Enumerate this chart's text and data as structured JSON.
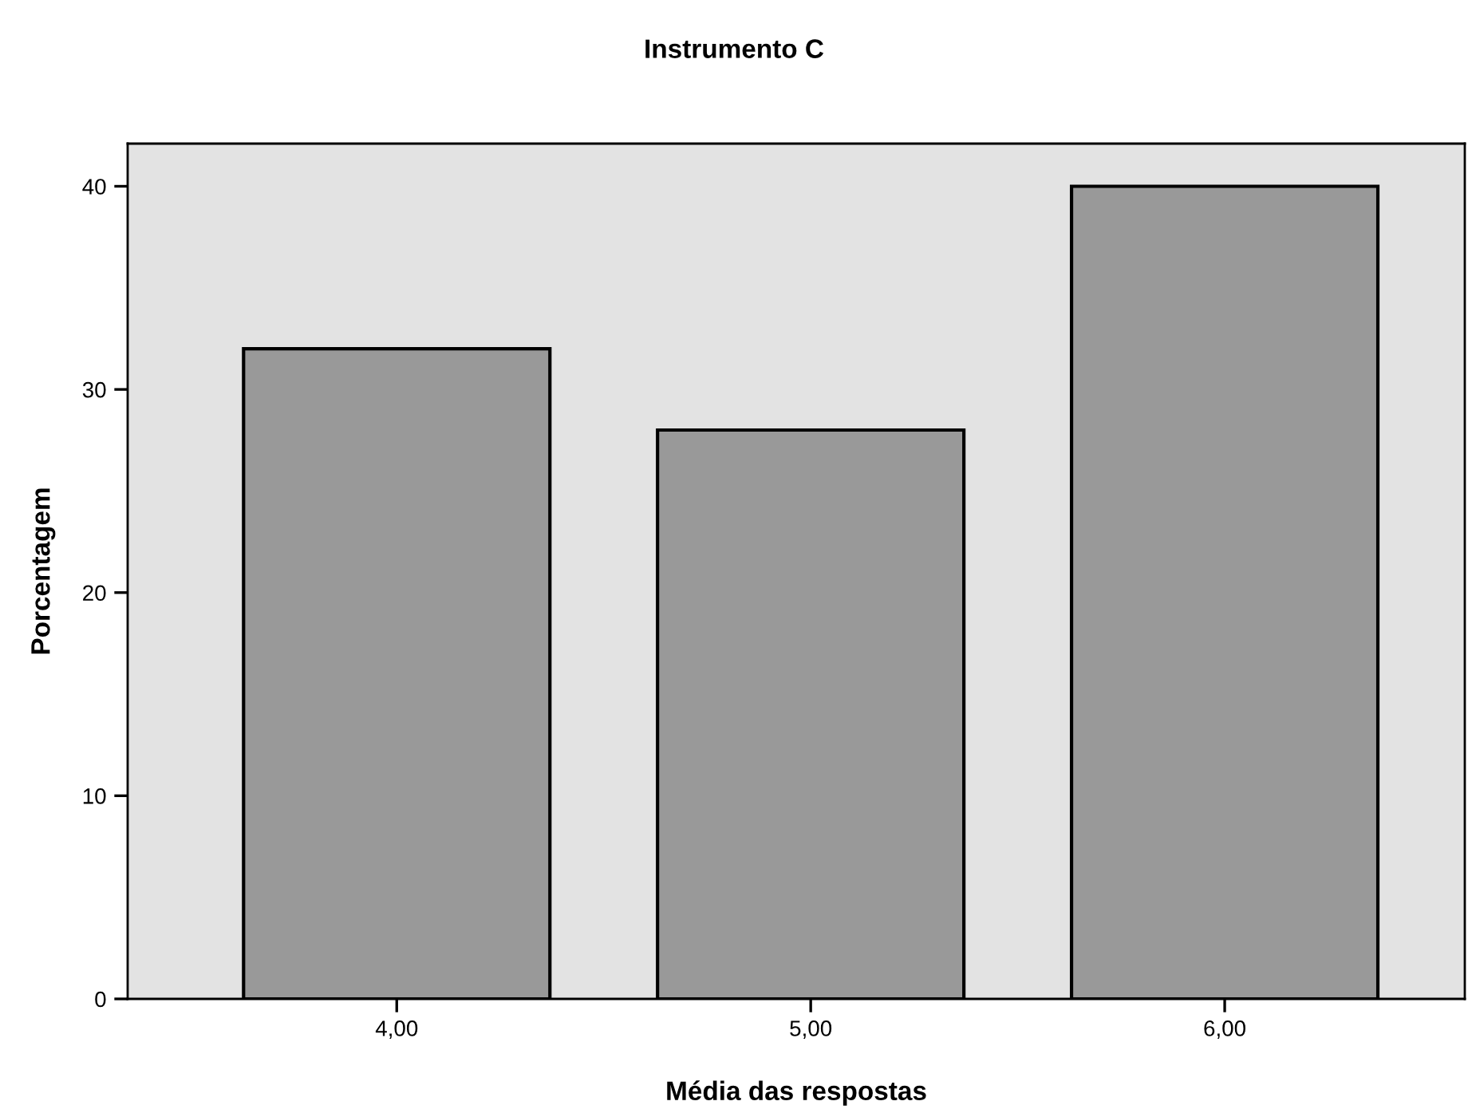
{
  "chart_data": {
    "type": "bar",
    "title": "Instrumento C",
    "xlabel": "Média das respostas",
    "ylabel": "Porcentagem",
    "categories": [
      "4,00",
      "5,00",
      "6,00"
    ],
    "values": [
      32,
      28,
      40
    ],
    "color": "#999999",
    "ylim": [
      0,
      42.1
    ],
    "yticks": [
      0,
      10,
      20,
      30,
      40
    ],
    "grid": false
  }
}
